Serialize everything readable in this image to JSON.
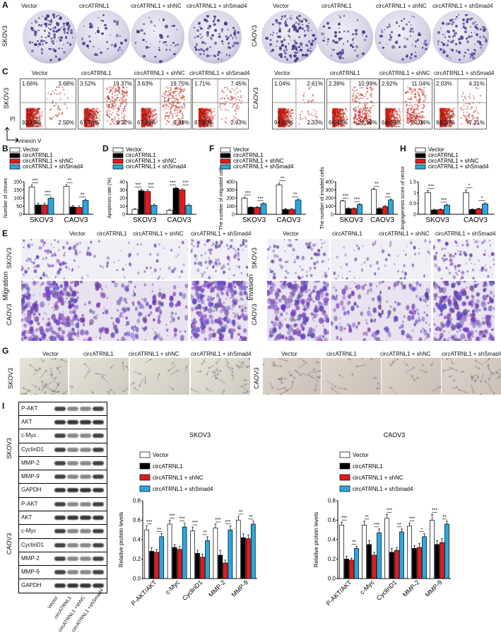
{
  "panel_letters": {
    "A": "A",
    "B": "B",
    "C": "C",
    "D": "D",
    "E": "E",
    "F": "F",
    "G": "G",
    "H": "H",
    "I": "I"
  },
  "groups": [
    "Vector",
    "circATRNL1",
    "circATRNL1 + shNC",
    "circATRNL1 + shSmad4"
  ],
  "cell_lines": [
    "SKOV3",
    "CAOV3"
  ],
  "flow": {
    "ylabel": "PI",
    "xlabel": "Annexin V",
    "SKOV3": [
      [
        "1.66%",
        "3.68%",
        "92.16%",
        "2.50%"
      ],
      [
        "3.52%",
        "19.37%",
        "67.79%",
        "9.32%"
      ],
      [
        "3.63%",
        "19.75%",
        "67.24%",
        "9.38%"
      ],
      [
        "1.71%",
        "7.45%",
        "87.90%",
        "2.93%"
      ]
    ],
    "CAOV3": [
      [
        "1.04%",
        "2.61%",
        "94.02%",
        "2.33%"
      ],
      [
        "2.39%",
        "10.99%",
        "66.43%",
        "20.19%"
      ],
      [
        "2.92%",
        "11.04%",
        "66.00%",
        "20.04%"
      ],
      [
        "2.03%",
        "4.31%",
        "86.35%",
        "7.31%"
      ]
    ]
  },
  "colors": {
    "Vector": "#ffffff",
    "circATRNL1": "#000000",
    "shNC": "#e31a1c",
    "shSmad4": "#29a8e0"
  },
  "section_E": {
    "migration": "Migration",
    "invasion": "Invasion"
  },
  "western": {
    "skov3": [
      "P-AKT",
      "AKT",
      "c-Myc",
      "CyclinD1",
      "MMP-2",
      "MMP-9",
      "GAPDH"
    ],
    "caov3": [
      "P-AKT",
      "AKT",
      "c-Myc",
      "CyclinD1",
      "MMP-2",
      "MMP-9",
      "GAPDH"
    ],
    "lane_labels": [
      "Vector",
      "circATRNL1",
      "circATRNL1 +shNC",
      "circATRNL1 +shSmad4"
    ]
  },
  "legend_I": [
    "Vector",
    "circATRNL1",
    "circATRNL1 + shNC",
    "circATRNL1 + shSmad4"
  ],
  "chart_data": [
    {
      "id": "B",
      "type": "bar",
      "ylabel": "Number of clonies",
      "ylim": [
        0,
        200
      ],
      "yticks": [
        0,
        50,
        100,
        150,
        200
      ],
      "categories": [
        "SKOV3",
        "CAOV3"
      ],
      "series": [
        {
          "name": "Vector",
          "values": [
            168,
            172
          ]
        },
        {
          "name": "circATRNL1",
          "values": [
            57,
            45
          ]
        },
        {
          "name": "circATRNL1 + shNC",
          "values": [
            57,
            42
          ]
        },
        {
          "name": "circATRNL1 + shSmad4",
          "values": [
            98,
            85
          ]
        }
      ],
      "errors": [
        [
          12,
          10
        ],
        [
          12,
          10
        ],
        [
          12,
          10
        ],
        [
          8,
          8
        ]
      ],
      "sig": [
        [
          "***",
          "**"
        ],
        [
          "***",
          "**"
        ]
      ]
    },
    {
      "id": "D",
      "type": "bar",
      "ylabel": "Apoptosis rate (%)",
      "ylim": [
        0,
        40
      ],
      "yticks": [
        0,
        10,
        20,
        30,
        40
      ],
      "categories": [
        "SKOV3",
        "CAOV3"
      ],
      "series": [
        {
          "name": "Vector",
          "values": [
            6,
            5
          ]
        },
        {
          "name": "circATRNL1",
          "values": [
            29,
            32
          ]
        },
        {
          "name": "circATRNL1 + shNC",
          "values": [
            28,
            30
          ]
        },
        {
          "name": "circATRNL1 + shSmad4",
          "values": [
            11,
            11
          ]
        }
      ],
      "errors": [
        [
          1,
          1
        ],
        [
          2,
          1.5
        ],
        [
          2,
          1.5
        ],
        [
          1.5,
          1.5
        ]
      ],
      "sig": [
        [
          "***",
          "***"
        ],
        [
          "***",
          "***"
        ]
      ]
    },
    {
      "id": "F1",
      "type": "bar",
      "ylabel": "The number of migrated cells",
      "ylim": [
        0,
        400
      ],
      "yticks": [
        0,
        100,
        200,
        300,
        400
      ],
      "categories": [
        "SKOV3",
        "CAOV3"
      ],
      "series": [
        {
          "name": "Vector",
          "values": [
            198,
            360
          ]
        },
        {
          "name": "circATRNL1",
          "values": [
            85,
            60
          ]
        },
        {
          "name": "circATRNL1 + shNC",
          "values": [
            85,
            60
          ]
        },
        {
          "name": "circATRNL1 + shSmad4",
          "values": [
            130,
            175
          ]
        }
      ],
      "errors": [
        [
          12,
          25
        ],
        [
          8,
          12
        ],
        [
          8,
          12
        ],
        [
          10,
          15
        ]
      ],
      "sig": [
        [
          "***",
          "**"
        ],
        [
          "***",
          "**"
        ]
      ]
    },
    {
      "id": "F2",
      "type": "bar",
      "ylabel": "The number of invaded cells",
      "ylim": [
        0,
        400
      ],
      "yticks": [
        0,
        100,
        200,
        300,
        400
      ],
      "categories": [
        "SKOV3",
        "CAOV3"
      ],
      "series": [
        {
          "name": "Vector",
          "values": [
            165,
            305
          ]
        },
        {
          "name": "circATRNL1",
          "values": [
            70,
            70
          ]
        },
        {
          "name": "circATRNL1 + shNC",
          "values": [
            70,
            95
          ]
        },
        {
          "name": "circATRNL1 + shSmad4",
          "values": [
            120,
            175
          ]
        }
      ],
      "errors": [
        [
          8,
          15
        ],
        [
          8,
          10
        ],
        [
          8,
          10
        ],
        [
          10,
          12
        ]
      ],
      "sig": [
        [
          "***",
          "**"
        ],
        [
          "***",
          "**"
        ]
      ]
    },
    {
      "id": "H",
      "type": "bar",
      "ylabel": "Angiogenesis score of vector",
      "ylim": [
        0,
        1.5
      ],
      "yticks": [
        0,
        0.5,
        1.0,
        1.5
      ],
      "categories": [
        "SKOV3",
        "CAOV3"
      ],
      "series": [
        {
          "name": "Vector",
          "values": [
            1.0,
            1.0
          ]
        },
        {
          "name": "circATRNL1",
          "values": [
            0.2,
            0.22
          ]
        },
        {
          "name": "circATRNL1 + shNC",
          "values": [
            0.22,
            0.25
          ]
        },
        {
          "name": "circATRNL1 + shSmad4",
          "values": [
            0.42,
            0.48
          ]
        }
      ],
      "errors": [
        [
          0.1,
          0.12
        ],
        [
          0.03,
          0.03
        ],
        [
          0.03,
          0.03
        ],
        [
          0.04,
          0.05
        ]
      ],
      "sig": [
        [
          "***",
          "*"
        ],
        [
          "***",
          "*"
        ]
      ]
    },
    {
      "id": "I1",
      "type": "bar",
      "title": "SKOV3",
      "ylabel": "Relative protein levels",
      "ylim": [
        0,
        0.8
      ],
      "yticks": [
        0,
        0.2,
        0.4,
        0.6,
        0.8
      ],
      "categories": [
        "P-AKT/AKT",
        "c-Myc",
        "CyclinD1",
        "MMP-2",
        "MMP-9"
      ],
      "series": [
        {
          "name": "Vector",
          "values": [
            0.5,
            0.56,
            0.49,
            0.52,
            0.6
          ]
        },
        {
          "name": "circATRNL1",
          "values": [
            0.28,
            0.32,
            0.26,
            0.24,
            0.42
          ]
        },
        {
          "name": "circATRNL1 + shNC",
          "values": [
            0.27,
            0.3,
            0.22,
            0.16,
            0.41
          ]
        },
        {
          "name": "circATRNL1 + shSmad4",
          "values": [
            0.43,
            0.53,
            0.39,
            0.5,
            0.56
          ]
        }
      ],
      "errors": [
        [
          0.04,
          0.04,
          0.04,
          0.04,
          0.04
        ],
        [
          0.04,
          0.03,
          0.03,
          0.05,
          0.04
        ],
        [
          0.03,
          0.03,
          0.03,
          0.03,
          0.04
        ],
        [
          0.03,
          0.04,
          0.04,
          0.04,
          0.03
        ]
      ],
      "sig": [
        "***",
        "***",
        "***",
        "***",
        "**"
      ],
      "sig2": [
        "**",
        "***",
        "**",
        "***",
        "**"
      ]
    },
    {
      "id": "I2",
      "type": "bar",
      "title": "CAOV3",
      "ylabel": "Relative protein levels",
      "ylim": [
        0,
        0.8
      ],
      "yticks": [
        0,
        0.2,
        0.4,
        0.6,
        0.8
      ],
      "categories": [
        "P-AKT/AKT",
        "c-Myc",
        "CyclinD1",
        "MMP-2",
        "MMP-9"
      ],
      "series": [
        {
          "name": "Vector",
          "values": [
            0.55,
            0.55,
            0.62,
            0.54,
            0.6
          ]
        },
        {
          "name": "circATRNL1",
          "values": [
            0.2,
            0.35,
            0.27,
            0.31,
            0.35
          ]
        },
        {
          "name": "circATRNL1 + shNC",
          "values": [
            0.19,
            0.24,
            0.29,
            0.32,
            0.37
          ]
        },
        {
          "name": "circATRNL1 + shSmad4",
          "values": [
            0.31,
            0.47,
            0.48,
            0.43,
            0.56
          ]
        }
      ],
      "errors": [
        [
          0.03,
          0.04,
          0.04,
          0.03,
          0.06
        ],
        [
          0.03,
          0.04,
          0.04,
          0.03,
          0.04
        ],
        [
          0.02,
          0.03,
          0.03,
          0.04,
          0.04
        ],
        [
          0.02,
          0.04,
          0.03,
          0.03,
          0.03
        ]
      ],
      "sig": [
        "***",
        "**",
        "***",
        "***",
        "***"
      ],
      "sig2": [
        "**",
        "***",
        "**",
        "*",
        "**"
      ]
    }
  ]
}
